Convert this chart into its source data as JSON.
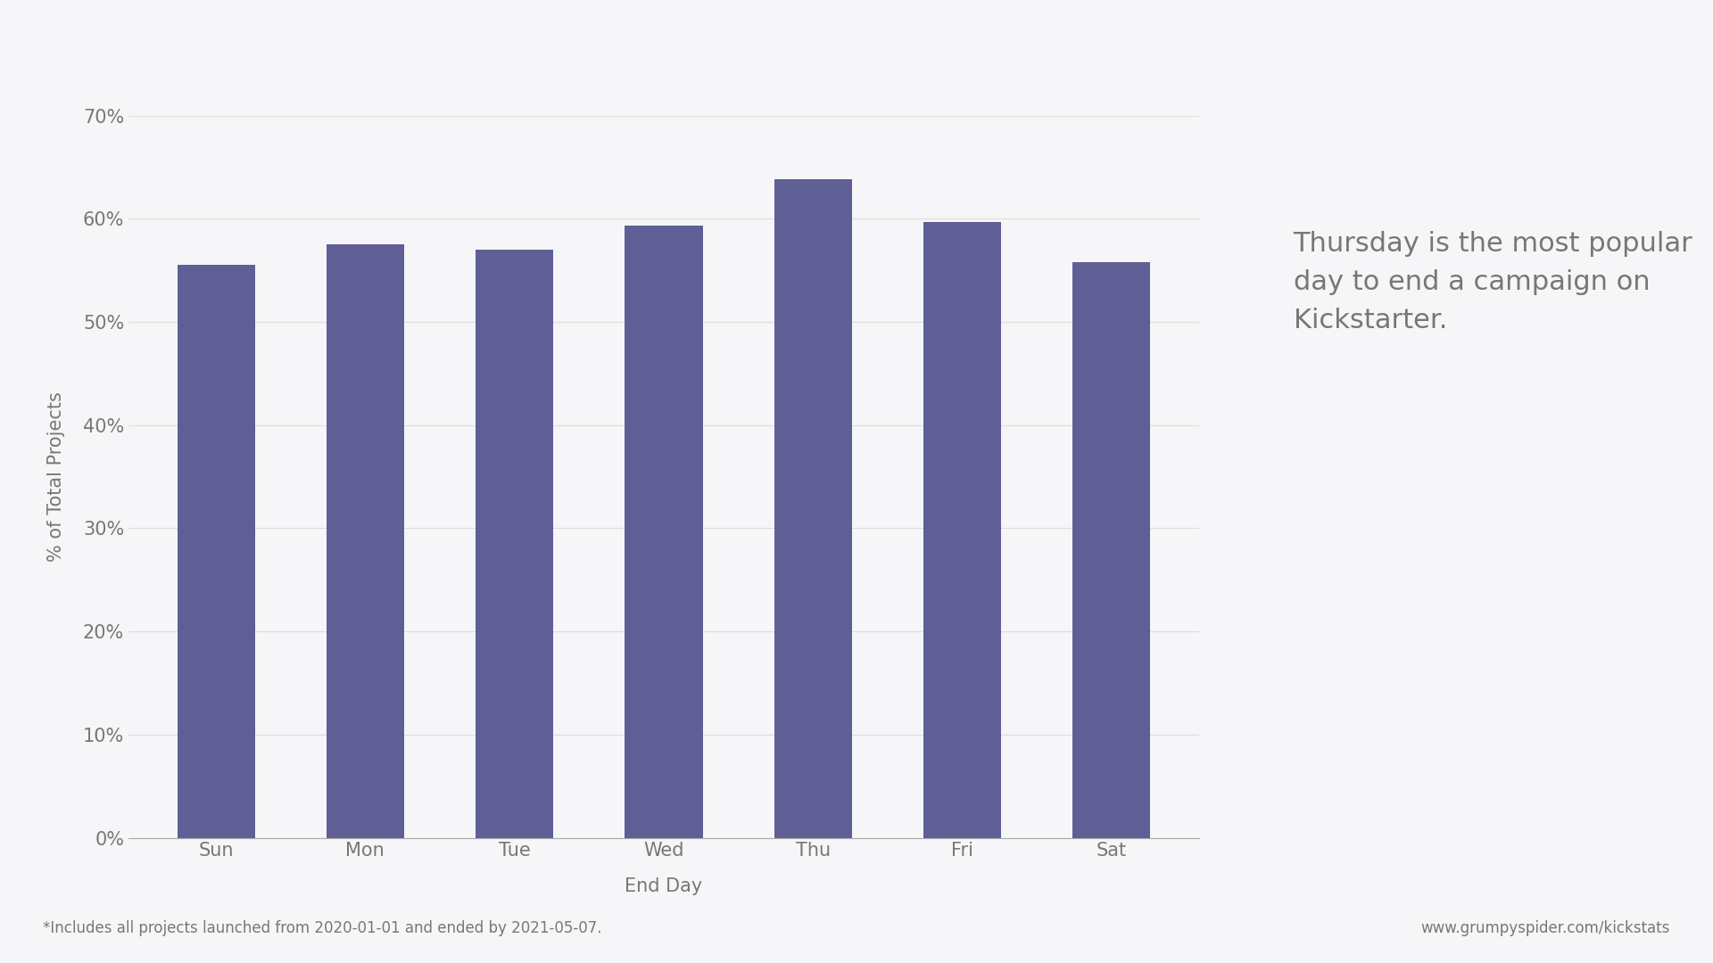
{
  "categories": [
    "Sun",
    "Mon",
    "Tue",
    "Wed",
    "Thu",
    "Fri",
    "Sat"
  ],
  "values": [
    0.555,
    0.575,
    0.57,
    0.593,
    0.638,
    0.597,
    0.558
  ],
  "bar_color": "#5f5f96",
  "background_color": "#f6f6f8",
  "ylabel": "% of Total Projects",
  "xlabel": "End Day",
  "ylim": [
    0,
    0.7
  ],
  "yticks": [
    0,
    0.1,
    0.2,
    0.3,
    0.4,
    0.5,
    0.6,
    0.7
  ],
  "title_text": "Thursday is the most popular\nday to end a campaign on\nKickstarter.",
  "footnote": "*Includes all projects launched from 2020-01-01 and ended by 2021-05-07.",
  "url_text": "www.grumpyspider.com/kickstats",
  "title_fontsize": 22,
  "label_fontsize": 15,
  "tick_fontsize": 15,
  "footnote_fontsize": 12,
  "url_fontsize": 12,
  "text_color": "#777777",
  "axis_color": "#aaaaaa",
  "grid_color": "#dddddd"
}
